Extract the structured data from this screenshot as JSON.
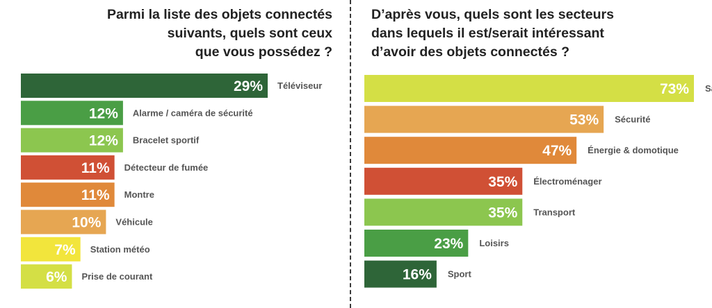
{
  "chart_data": [
    {
      "type": "bar",
      "orientation": "horizontal",
      "title": "Parmi la liste des objets connectés suivants, quels sont ceux que vous possédez ?",
      "title_lines": [
        "Parmi la liste des objets connectés",
        "suivants, quels sont ceux",
        "que vous possédez ?"
      ],
      "categories": [
        "Téléviseur",
        "Alarme / caméra de sécurité",
        "Bracelet sportif",
        "Détecteur de fumée",
        "Montre",
        "Véhicule",
        "Station météo",
        "Prise de courant"
      ],
      "values": [
        29,
        12,
        12,
        11,
        11,
        10,
        7,
        6
      ],
      "value_labels": [
        "29%",
        "12%",
        "12%",
        "11%",
        "11%",
        "10%",
        "7%",
        "6%"
      ],
      "colors": [
        "#2e6538",
        "#4a9e45",
        "#8cc64f",
        "#d05035",
        "#e0893a",
        "#e6a652",
        "#f2e53c",
        "#d4df45"
      ],
      "unit": "%"
    },
    {
      "type": "bar",
      "orientation": "horizontal",
      "title": "D'après vous, quels sont les secteurs dans lequels il est/serait intéressant d'avoir des objets connectés ?",
      "title_lines": [
        "D’après vous, quels sont les secteurs",
        "dans lequels il est/serait intéressant",
        "d’avoir des objets connectés ?"
      ],
      "categories": [
        "Santé",
        "Sécurité",
        "Énergie & domotique",
        "Électroménager",
        "Transport",
        "Loisirs",
        "Sport"
      ],
      "values": [
        73,
        53,
        47,
        35,
        35,
        23,
        16
      ],
      "value_labels": [
        "73%",
        "53%",
        "47%",
        "35%",
        "35%",
        "23%",
        "16%"
      ],
      "colors": [
        "#d4df45",
        "#e6a652",
        "#e0893a",
        "#d05035",
        "#8cc64f",
        "#4a9e45",
        "#2e6538"
      ],
      "unit": "%"
    }
  ]
}
